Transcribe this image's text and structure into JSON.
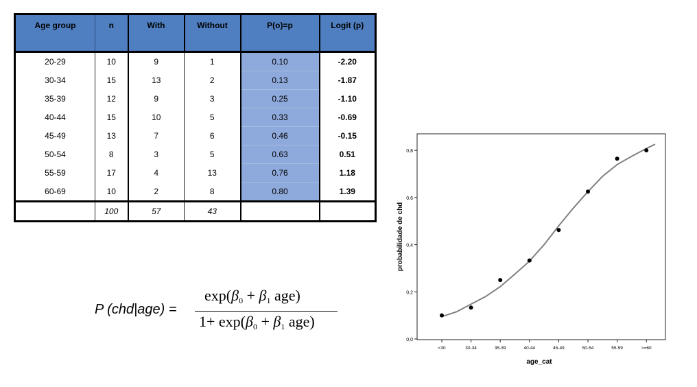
{
  "table": {
    "headers": [
      "Age group",
      "n",
      "With",
      "Without",
      "P(o)=p",
      "Logit (p)"
    ],
    "rows": [
      [
        "20-29",
        "10",
        "9",
        "1",
        "0.10",
        "-2.20"
      ],
      [
        "30-34",
        "15",
        "13",
        "2",
        "0.13",
        "-1.87"
      ],
      [
        "35-39",
        "12",
        "9",
        "3",
        "0.25",
        "-1.10"
      ],
      [
        "40-44",
        "15",
        "10",
        "5",
        "0.33",
        "-0.69"
      ],
      [
        "45-49",
        "13",
        "7",
        "6",
        "0.46",
        "-0.15"
      ],
      [
        "50-54",
        "8",
        "3",
        "5",
        "0.63",
        "0.51"
      ],
      [
        "55-59",
        "17",
        "4",
        "13",
        "0.76",
        "1.18"
      ],
      [
        "60-69",
        "10",
        "2",
        "8",
        "0.80",
        "1.39"
      ]
    ],
    "totals": [
      "",
      "100",
      "57",
      "43",
      "",
      ""
    ]
  },
  "formula": {
    "lhs": "P (chd|age) =",
    "exp": "exp(",
    "beta": "β",
    "sub0": "0",
    "sub1": "1",
    "plus": " + ",
    "age": " age)",
    "one_plus": "1+ "
  },
  "colors": {
    "table_header": "#4f7fc1",
    "p_column": "#8ea9db",
    "curve": "#808080",
    "points": "#000000"
  },
  "chart_data": {
    "type": "scatter",
    "xlabel": "age_cat",
    "ylabel": "probabilidade de chd",
    "categories": [
      "<30",
      "30-34",
      "35-39",
      "40-44",
      "45-49",
      "50-54",
      "55-59",
      ">=60"
    ],
    "values": [
      0.1,
      0.133,
      0.25,
      0.333,
      0.462,
      0.625,
      0.765,
      0.8
    ],
    "ylim": [
      0.0,
      0.85
    ],
    "yticks": [
      0.0,
      0.2,
      0.4,
      0.6,
      0.8
    ],
    "ytick_labels": [
      "0,0",
      "0,2",
      "0,4",
      "0,6",
      "0,8"
    ],
    "fitted_curve": {
      "x": [
        0,
        0.5,
        1,
        1.5,
        2,
        2.5,
        3,
        3.5,
        4,
        4.5,
        5,
        5.5,
        6,
        6.5,
        7,
        7.3
      ],
      "y": [
        0.095,
        0.115,
        0.148,
        0.18,
        0.222,
        0.275,
        0.33,
        0.4,
        0.48,
        0.555,
        0.625,
        0.69,
        0.74,
        0.775,
        0.808,
        0.826
      ]
    }
  }
}
